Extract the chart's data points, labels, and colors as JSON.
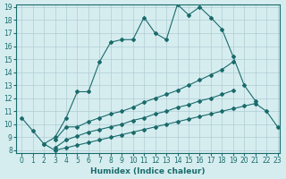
{
  "xlabel": "Humidex (Indice chaleur)",
  "background_color": "#d6edf0",
  "grid_color": "#b0cdd4",
  "line_color": "#1a6b6b",
  "xlim": [
    0,
    23
  ],
  "ylim": [
    8,
    19
  ],
  "xticks": [
    0,
    1,
    2,
    3,
    4,
    5,
    6,
    7,
    8,
    9,
    10,
    11,
    12,
    13,
    14,
    15,
    16,
    17,
    18,
    19,
    20,
    21,
    22,
    23
  ],
  "yticks": [
    8,
    9,
    10,
    11,
    12,
    13,
    14,
    15,
    16,
    17,
    18,
    19
  ],
  "line1_x": [
    0,
    1,
    2,
    3,
    4,
    5,
    6,
    7,
    8,
    9,
    10,
    11,
    12,
    13,
    14,
    15,
    16,
    17,
    18,
    19,
    20,
    21
  ],
  "line1_y": [
    10.5,
    9.5,
    8.5,
    9.0,
    10.5,
    12.5,
    12.5,
    14.8,
    16.3,
    16.5,
    16.5,
    18.2,
    17.0,
    16.5,
    19.2,
    18.4,
    19.0,
    18.2,
    17.3,
    15.2,
    13.0,
    11.8
  ],
  "line2_x": [
    3,
    4,
    5,
    6,
    7,
    8,
    9,
    10,
    11,
    12,
    13,
    14,
    15,
    16,
    17,
    18,
    19
  ],
  "line2_y": [
    8.8,
    9.8,
    9.8,
    10.2,
    10.5,
    10.8,
    11.0,
    11.3,
    11.7,
    12.0,
    12.3,
    12.6,
    13.0,
    13.4,
    13.8,
    14.2,
    14.8
  ],
  "line3_x": [
    3,
    4,
    5,
    6,
    7,
    8,
    9,
    10,
    11,
    12,
    13,
    14,
    15,
    16,
    17,
    18,
    19
  ],
  "line3_y": [
    8.2,
    8.8,
    9.1,
    9.4,
    9.6,
    9.8,
    10.0,
    10.3,
    10.5,
    10.8,
    11.0,
    11.3,
    11.5,
    11.8,
    12.0,
    12.3,
    12.6
  ],
  "line4_x": [
    2,
    3,
    4,
    5,
    6,
    7,
    8,
    9,
    10,
    11,
    12,
    13,
    14,
    15,
    16,
    17,
    18,
    19,
    20,
    21,
    22,
    23
  ],
  "line4_y": [
    8.5,
    8.0,
    8.2,
    8.4,
    8.6,
    8.8,
    9.0,
    9.2,
    9.4,
    9.6,
    9.8,
    10.0,
    10.2,
    10.4,
    10.6,
    10.8,
    11.0,
    11.2,
    11.4,
    11.6,
    11.0,
    9.8
  ]
}
